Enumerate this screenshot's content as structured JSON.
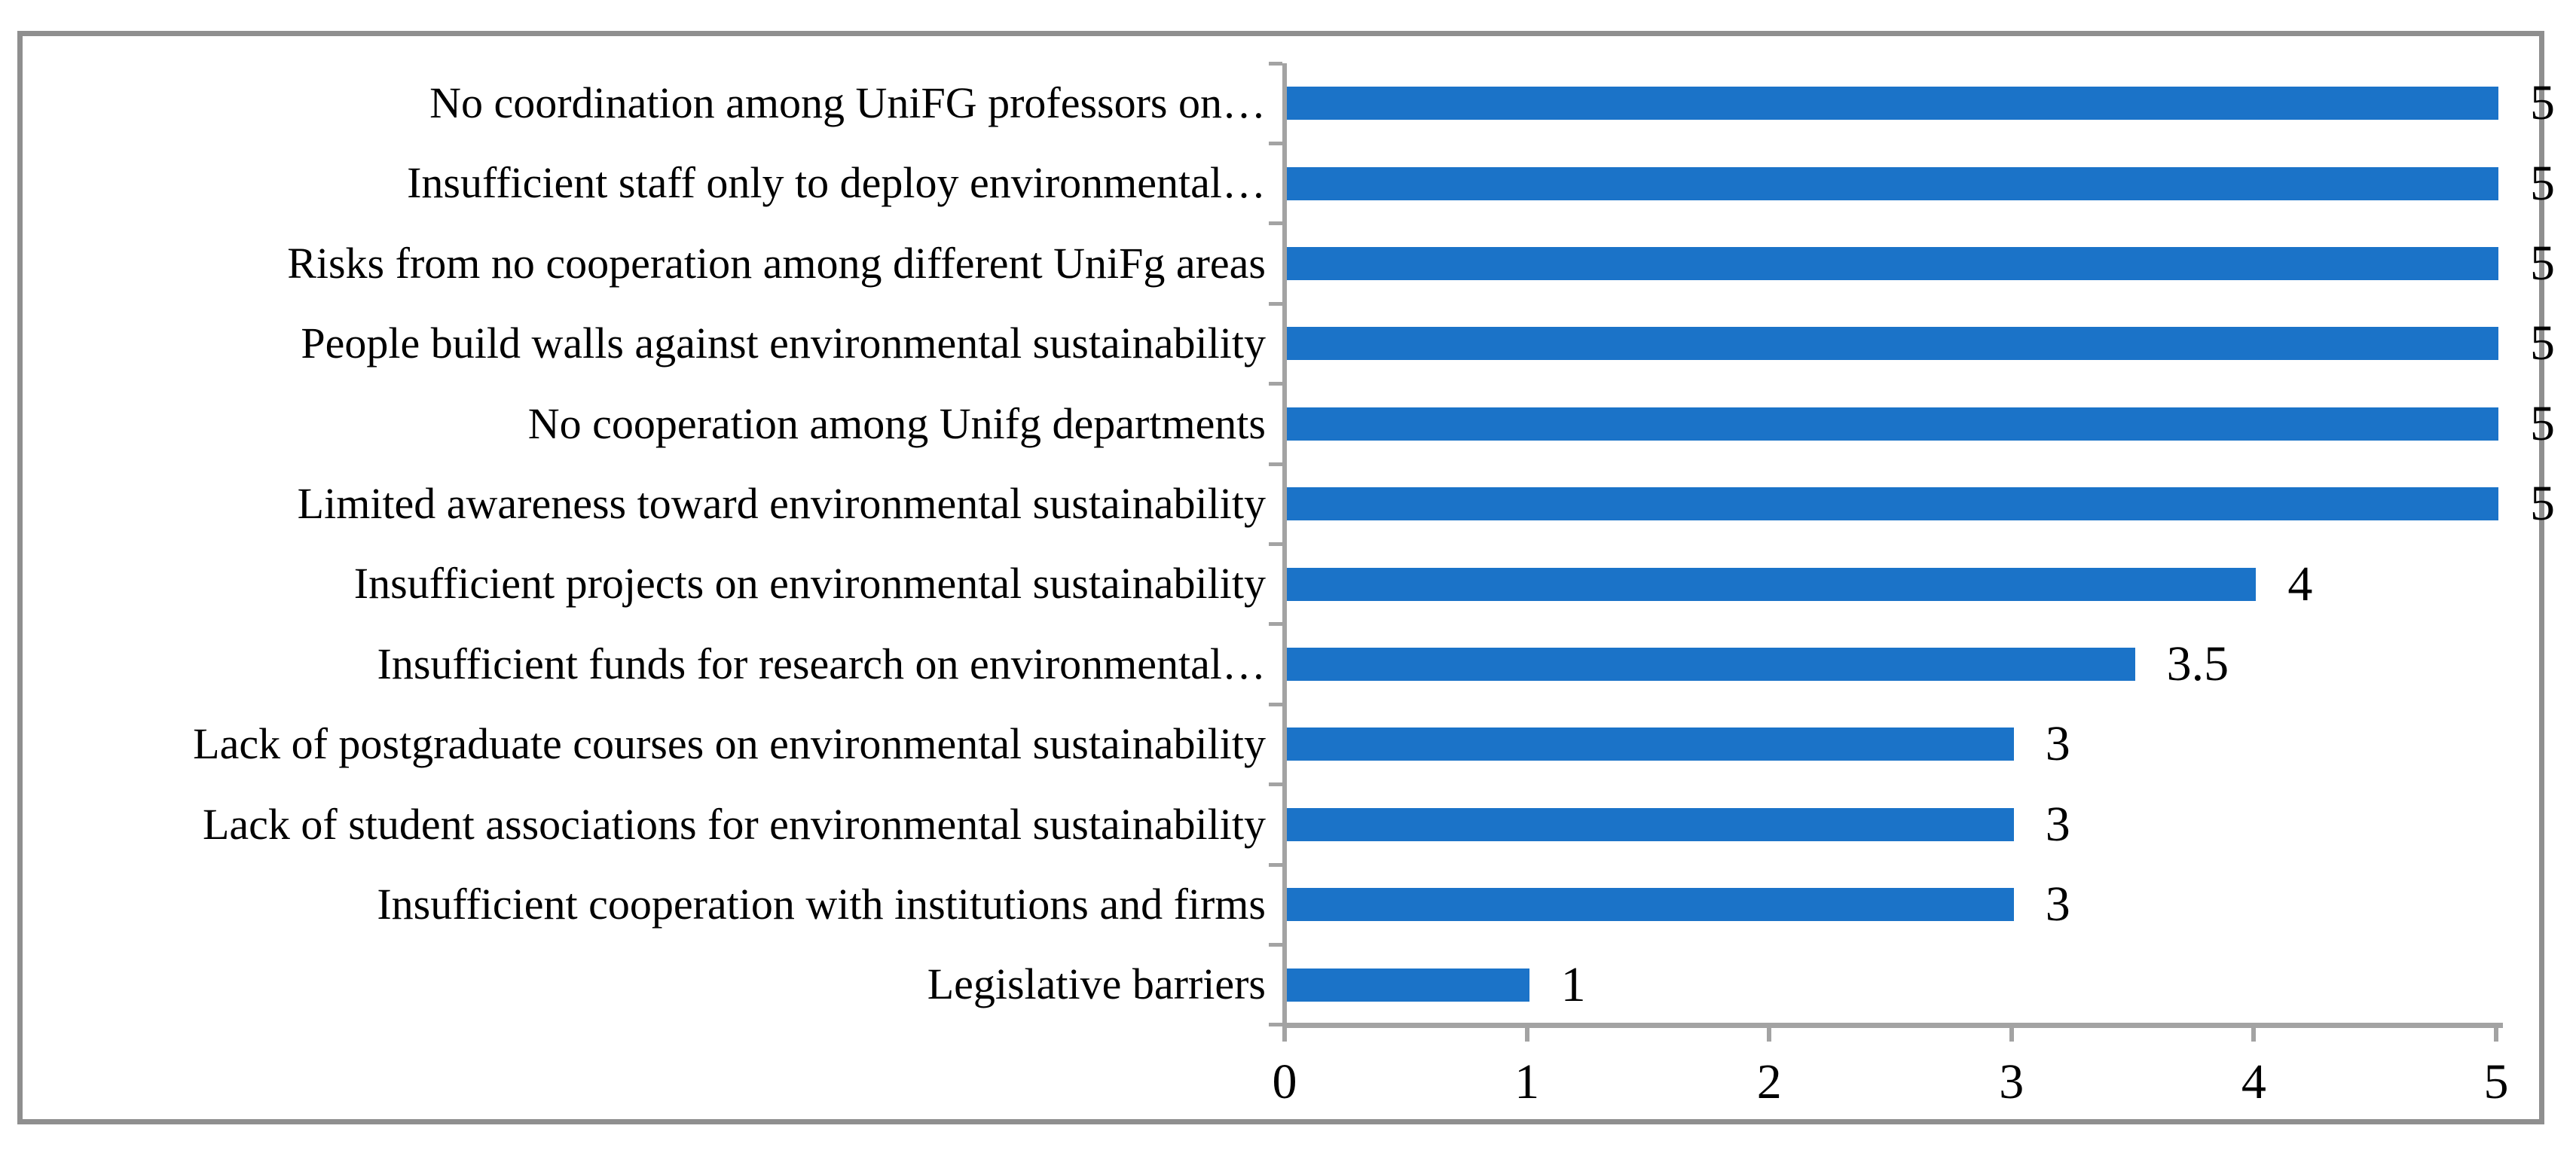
{
  "chart_data": {
    "type": "bar",
    "orientation": "horizontal",
    "title": "",
    "xlabel": "",
    "ylabel": "",
    "legend_position": "none",
    "grid": "off",
    "xlim": [
      0,
      5
    ],
    "x_ticks": [
      "0",
      "1",
      "2",
      "3",
      "4",
      "5"
    ],
    "categories": [
      "No coordination among UniFG professors on…",
      "Insufficient staff only to deploy environmental…",
      "Risks from no cooperation among different UniFg areas",
      "People build walls against environmental sustainability",
      "No cooperation among Unifg departments",
      "Limited awareness toward environmental sustainability",
      "Insufficient projects on environmental sustainability",
      "Insufficient funds for research on environmental…",
      "Lack of postgraduate courses on environmental sustainability",
      "Lack of student associations for environmental sustainability",
      "Insufficient cooperation with institutions and firms",
      "Legislative barriers"
    ],
    "values": [
      5,
      5,
      5,
      5,
      5,
      5,
      4,
      3.5,
      3,
      3,
      3,
      1
    ],
    "data_labels": [
      "5",
      "5",
      "5",
      "5",
      "5",
      "5",
      "4",
      "3.5",
      "3",
      "3",
      "3",
      "1"
    ],
    "colors": {
      "bar": "#1b73c8",
      "axis": "#a3a3a3",
      "frame": "#8f8f8f",
      "text": "#000000",
      "background": "#ffffff"
    }
  }
}
